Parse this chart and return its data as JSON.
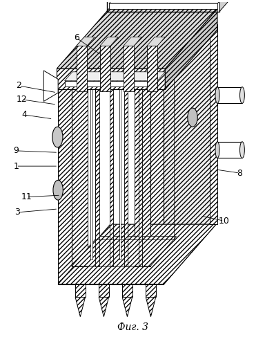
{
  "title": "Фиг. 3",
  "title_fontsize": 10,
  "bg_color": "#ffffff",
  "line_color": "#000000",
  "label_fontsize": 9,
  "labels_pos": {
    "6": [
      0.285,
      0.895,
      0.38,
      0.845
    ],
    "2": [
      0.065,
      0.755,
      0.21,
      0.735
    ],
    "12": [
      0.075,
      0.715,
      0.21,
      0.7
    ],
    "4": [
      0.085,
      0.67,
      0.195,
      0.658
    ],
    "9": [
      0.055,
      0.565,
      0.215,
      0.56
    ],
    "1": [
      0.055,
      0.52,
      0.215,
      0.52
    ],
    "11": [
      0.095,
      0.43,
      0.225,
      0.435
    ],
    "3": [
      0.06,
      0.385,
      0.215,
      0.395
    ],
    "8": [
      0.91,
      0.5,
      0.82,
      0.51
    ],
    "10": [
      0.85,
      0.36,
      0.76,
      0.375
    ]
  }
}
